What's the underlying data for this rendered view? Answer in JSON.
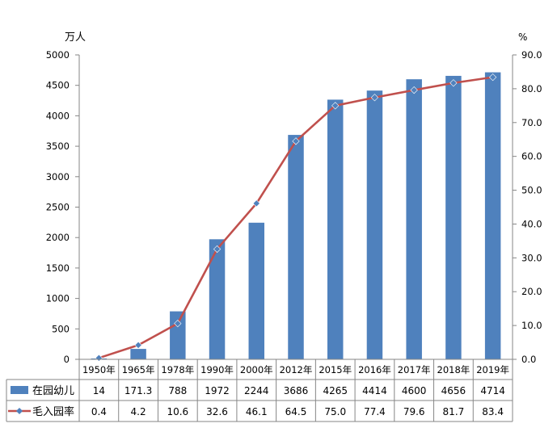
{
  "chart_data": {
    "type": "bar",
    "y_left_unit": "万人",
    "y_right_unit": "%",
    "ylim_left": [
      0,
      5000
    ],
    "ylim_right": [
      0,
      90
    ],
    "y_left_ticks": [
      "0",
      "500",
      "1000",
      "1500",
      "2000",
      "2500",
      "3000",
      "3500",
      "4000",
      "4500",
      "5000"
    ],
    "y_right_ticks": [
      "0.0",
      "10.0",
      "20.0",
      "30.0",
      "40.0",
      "50.0",
      "60.0",
      "70.0",
      "80.0",
      "90.0"
    ],
    "categories": [
      "1950年",
      "1965年",
      "1978年",
      "1990年",
      "2000年",
      "2012年",
      "2015年",
      "2016年",
      "2017年",
      "2018年",
      "2019年"
    ],
    "series": [
      {
        "name": "在园幼儿",
        "type": "bar",
        "axis": "left",
        "color": "#4f81bd",
        "values": [
          14,
          171.3,
          788,
          1972,
          2244,
          3686,
          4265,
          4414,
          4600,
          4656,
          4714
        ],
        "labels": [
          "14",
          "171.3",
          "788",
          "1972",
          "2244",
          "3686",
          "4265",
          "4414",
          "4600",
          "4656",
          "4714"
        ]
      },
      {
        "name": "毛入园率",
        "type": "line",
        "axis": "right",
        "color": "#c0504d",
        "marker_color": "#4f81bd",
        "values": [
          0.4,
          4.2,
          10.6,
          32.6,
          46.1,
          64.5,
          75.0,
          77.4,
          79.6,
          81.7,
          83.4
        ],
        "labels": [
          "0.4",
          "4.2",
          "10.6",
          "32.6",
          "46.1",
          "64.5",
          "75.0",
          "77.4",
          "79.6",
          "81.7",
          "83.4"
        ]
      }
    ],
    "grid": false,
    "legend": "data-table-left"
  }
}
